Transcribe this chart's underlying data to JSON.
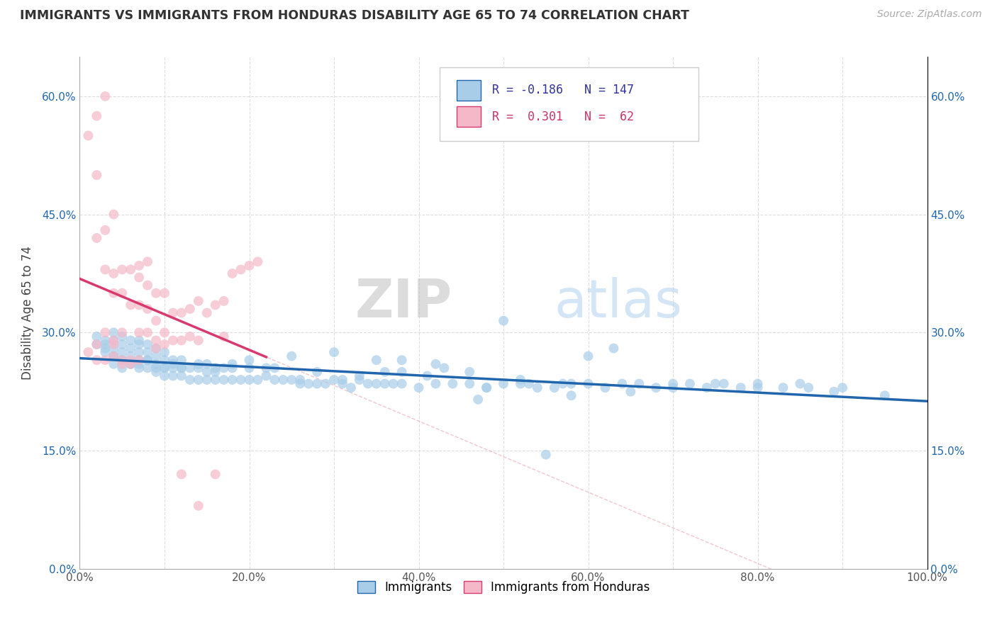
{
  "title": "IMMIGRANTS VS IMMIGRANTS FROM HONDURAS DISABILITY AGE 65 TO 74 CORRELATION CHART",
  "source": "Source: ZipAtlas.com",
  "ylabel": "Disability Age 65 to 74",
  "xlim": [
    0.0,
    1.0
  ],
  "ylim": [
    0.0,
    0.65
  ],
  "xticks": [
    0.0,
    0.1,
    0.2,
    0.3,
    0.4,
    0.5,
    0.6,
    0.7,
    0.8,
    0.9,
    1.0
  ],
  "xticklabels": [
    "0.0%",
    "",
    "20.0%",
    "",
    "40.0%",
    "",
    "60.0%",
    "",
    "80.0%",
    "",
    "100.0%"
  ],
  "yticks": [
    0.0,
    0.15,
    0.3,
    0.45,
    0.6
  ],
  "yticklabels": [
    "0.0%",
    "15.0%",
    "30.0%",
    "45.0%",
    "60.0%"
  ],
  "blue_R": "-0.186",
  "blue_N": "147",
  "pink_R": "0.301",
  "pink_N": "62",
  "blue_color": "#a8cde8",
  "pink_color": "#f4b8c8",
  "blue_line_color": "#2166ac",
  "pink_line_color": "#d63a6e",
  "watermark": "ZIPatlas",
  "legend_blue_label": "Immigrants",
  "legend_pink_label": "Immigrants from Honduras",
  "blue_x": [
    0.02,
    0.02,
    0.03,
    0.03,
    0.03,
    0.04,
    0.04,
    0.04,
    0.04,
    0.04,
    0.05,
    0.05,
    0.05,
    0.05,
    0.05,
    0.06,
    0.06,
    0.06,
    0.06,
    0.07,
    0.07,
    0.07,
    0.07,
    0.07,
    0.08,
    0.08,
    0.08,
    0.08,
    0.09,
    0.09,
    0.09,
    0.09,
    0.1,
    0.1,
    0.1,
    0.1,
    0.11,
    0.11,
    0.11,
    0.12,
    0.12,
    0.12,
    0.13,
    0.13,
    0.14,
    0.14,
    0.15,
    0.15,
    0.15,
    0.16,
    0.16,
    0.17,
    0.17,
    0.18,
    0.18,
    0.19,
    0.2,
    0.2,
    0.21,
    0.22,
    0.23,
    0.24,
    0.25,
    0.26,
    0.27,
    0.28,
    0.29,
    0.3,
    0.31,
    0.32,
    0.33,
    0.34,
    0.35,
    0.36,
    0.37,
    0.38,
    0.4,
    0.42,
    0.44,
    0.46,
    0.48,
    0.5,
    0.52,
    0.54,
    0.56,
    0.58,
    0.6,
    0.62,
    0.64,
    0.66,
    0.68,
    0.7,
    0.72,
    0.74,
    0.76,
    0.78,
    0.8,
    0.83,
    0.86,
    0.89,
    0.5,
    0.55,
    0.6,
    0.63,
    0.47,
    0.52,
    0.57,
    0.42,
    0.38,
    0.35,
    0.3,
    0.25,
    0.22,
    0.2,
    0.18,
    0.16,
    0.14,
    0.12,
    0.11,
    0.1,
    0.09,
    0.08,
    0.07,
    0.06,
    0.05,
    0.04,
    0.03,
    0.48,
    0.53,
    0.58,
    0.43,
    0.38,
    0.33,
    0.28,
    0.23,
    0.46,
    0.41,
    0.36,
    0.31,
    0.26,
    0.65,
    0.7,
    0.75,
    0.8,
    0.85,
    0.9,
    0.95
  ],
  "blue_y": [
    0.285,
    0.295,
    0.275,
    0.28,
    0.29,
    0.26,
    0.27,
    0.28,
    0.29,
    0.3,
    0.255,
    0.265,
    0.275,
    0.285,
    0.295,
    0.26,
    0.27,
    0.28,
    0.29,
    0.255,
    0.265,
    0.275,
    0.285,
    0.29,
    0.255,
    0.265,
    0.275,
    0.285,
    0.25,
    0.26,
    0.27,
    0.28,
    0.245,
    0.255,
    0.265,
    0.275,
    0.245,
    0.255,
    0.265,
    0.245,
    0.255,
    0.265,
    0.24,
    0.255,
    0.24,
    0.255,
    0.24,
    0.25,
    0.26,
    0.24,
    0.25,
    0.24,
    0.255,
    0.24,
    0.255,
    0.24,
    0.24,
    0.255,
    0.24,
    0.245,
    0.24,
    0.24,
    0.24,
    0.24,
    0.235,
    0.235,
    0.235,
    0.24,
    0.235,
    0.23,
    0.24,
    0.235,
    0.235,
    0.235,
    0.235,
    0.235,
    0.23,
    0.235,
    0.235,
    0.235,
    0.23,
    0.235,
    0.235,
    0.23,
    0.23,
    0.235,
    0.235,
    0.23,
    0.235,
    0.235,
    0.23,
    0.235,
    0.235,
    0.23,
    0.235,
    0.23,
    0.235,
    0.23,
    0.23,
    0.225,
    0.315,
    0.145,
    0.27,
    0.28,
    0.215,
    0.24,
    0.235,
    0.26,
    0.265,
    0.265,
    0.275,
    0.27,
    0.255,
    0.265,
    0.26,
    0.255,
    0.26,
    0.255,
    0.26,
    0.255,
    0.255,
    0.265,
    0.26,
    0.26,
    0.265,
    0.27,
    0.285,
    0.23,
    0.235,
    0.22,
    0.255,
    0.25,
    0.245,
    0.25,
    0.255,
    0.25,
    0.245,
    0.25,
    0.24,
    0.235,
    0.225,
    0.23,
    0.235,
    0.23,
    0.235,
    0.23,
    0.22
  ],
  "pink_x": [
    0.01,
    0.01,
    0.02,
    0.02,
    0.02,
    0.02,
    0.03,
    0.03,
    0.03,
    0.03,
    0.04,
    0.04,
    0.04,
    0.04,
    0.05,
    0.05,
    0.05,
    0.05,
    0.06,
    0.06,
    0.06,
    0.07,
    0.07,
    0.07,
    0.07,
    0.08,
    0.08,
    0.08,
    0.09,
    0.09,
    0.09,
    0.1,
    0.1,
    0.1,
    0.11,
    0.11,
    0.12,
    0.12,
    0.13,
    0.13,
    0.14,
    0.14,
    0.15,
    0.16,
    0.17,
    0.17,
    0.18,
    0.19,
    0.2,
    0.21,
    0.02,
    0.03,
    0.04,
    0.05,
    0.06,
    0.07,
    0.08,
    0.04,
    0.12,
    0.16,
    0.09,
    0.14
  ],
  "pink_y": [
    0.275,
    0.55,
    0.5,
    0.42,
    0.285,
    0.265,
    0.43,
    0.38,
    0.3,
    0.265,
    0.375,
    0.35,
    0.285,
    0.27,
    0.38,
    0.35,
    0.3,
    0.265,
    0.38,
    0.335,
    0.265,
    0.37,
    0.335,
    0.3,
    0.265,
    0.36,
    0.33,
    0.3,
    0.35,
    0.315,
    0.29,
    0.35,
    0.3,
    0.285,
    0.325,
    0.29,
    0.325,
    0.29,
    0.33,
    0.295,
    0.34,
    0.29,
    0.325,
    0.335,
    0.34,
    0.295,
    0.375,
    0.38,
    0.385,
    0.39,
    0.575,
    0.6,
    0.45,
    0.26,
    0.26,
    0.385,
    0.39,
    0.29,
    0.12,
    0.12,
    0.28,
    0.08
  ]
}
